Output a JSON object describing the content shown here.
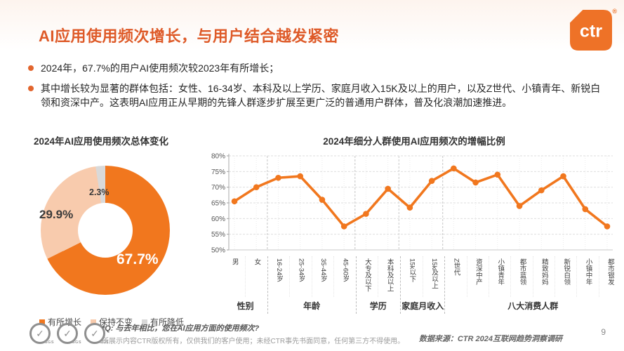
{
  "header": {
    "title": "AI应用使用频次增长，与用户结合越发紧密",
    "logo_text": "ctr",
    "logo_registered": "®",
    "accent_color": "#de5a28",
    "logo_color": "#ee7227"
  },
  "bullets": [
    "2024年，67.7%的用户AI使用频次较2023年有所增长；",
    "其中增长较为显著的群体包括：女性、16-34岁、本科及以上学历、家庭月收入15K及以上的用户，以及Z世代、小镇青年、新锐白领和资深中产。这表明AI应用正从早期的先锋人群逐步扩展至更广泛的普通用户群体，普及化浪潮加速推进。"
  ],
  "chart_data": [
    {
      "type": "pie",
      "subtype": "donut",
      "title": "2024年AI应用使用频次总体变化",
      "segments": [
        {
          "label": "有所增长",
          "value": 67.7,
          "color": "#f1771e"
        },
        {
          "label": "保持不变",
          "value": 29.9,
          "color": "#f8cbad"
        },
        {
          "label": "有所降低",
          "value": 2.3,
          "color": "#d9d9d9"
        }
      ],
      "start_angle_deg": 0,
      "direction": "clockwise",
      "legend_position": "bottom"
    },
    {
      "type": "line",
      "title": "2024年细分人群使用AI应用频次的增幅比例",
      "categories": [
        "男",
        "女",
        "16-24岁",
        "25-34岁",
        "35-44岁",
        "45-60岁",
        "大专及以下",
        "本科及以上",
        "15k以下",
        "15k及以上",
        "Z世代",
        "资深中产",
        "小镇青年",
        "都市蓝领",
        "精致妈妈",
        "新锐白领",
        "小镇中年",
        "都市银发"
      ],
      "values": [
        65.5,
        70,
        73,
        73.5,
        66,
        57.5,
        61.5,
        69.5,
        63.5,
        72,
        76,
        71.5,
        74,
        64,
        69,
        73.5,
        63,
        57.5
      ],
      "groups": [
        {
          "label": "性别",
          "count": 2
        },
        {
          "label": "年龄",
          "count": 4
        },
        {
          "label": "学历",
          "count": 2
        },
        {
          "label": "家庭月收入",
          "count": 2
        },
        {
          "label": "八大消费人群",
          "count": 8
        }
      ],
      "ylim": [
        50,
        80
      ],
      "ytick_step": 5,
      "ytick_suffix": "%",
      "grid": true,
      "line_color": "#f1771e"
    }
  ],
  "footer": {
    "badges": [
      "SGS",
      "SGS",
      "SGS"
    ],
    "badge_check_glyph": "✓",
    "question": "*Q: 与去年相比，您在AI应用方面的使用频次?",
    "copyright": "所展示内容CTR版权所有，仅供我们的客户使用；未经CTR事先书面同意，任何第三方不得使用。",
    "source": "数据来源：CTR 2024互联网趋势洞察调研",
    "page_number": "9"
  }
}
